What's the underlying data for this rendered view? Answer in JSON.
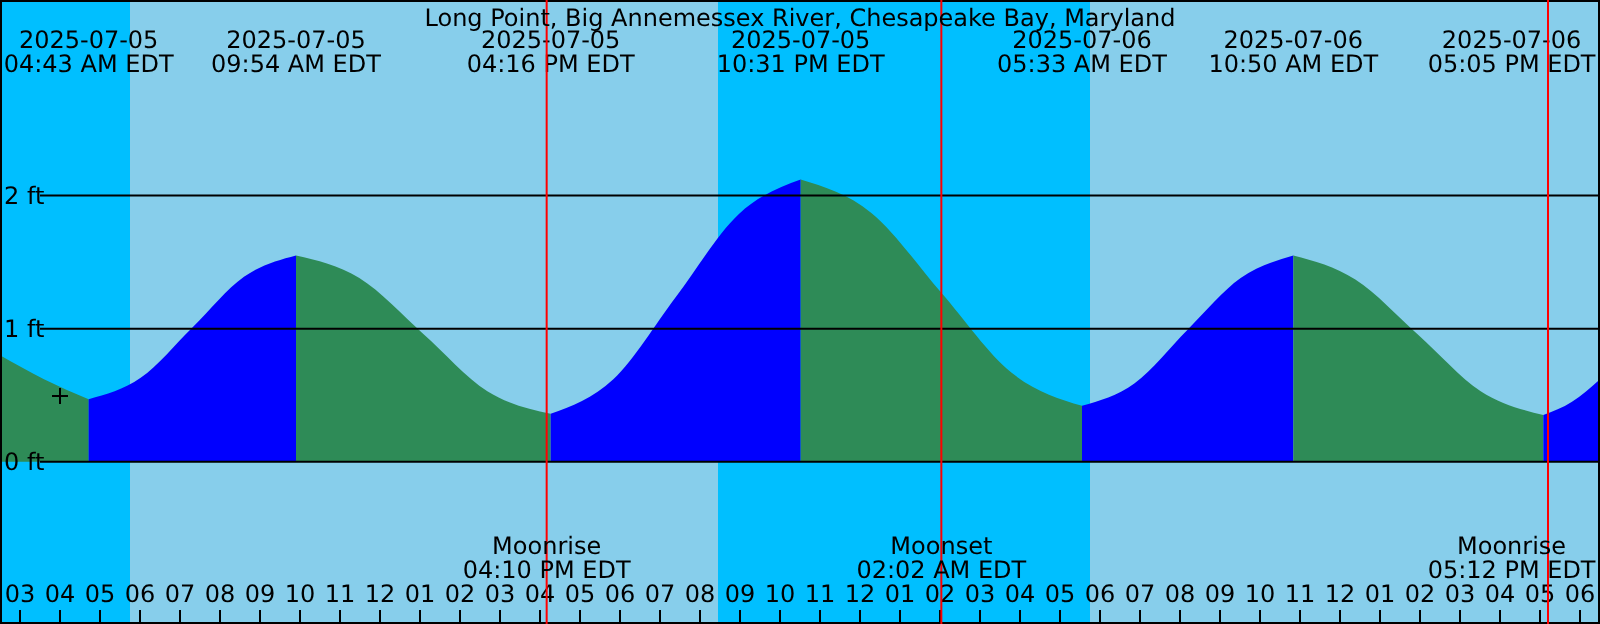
{
  "chart_data": {
    "type": "area",
    "title": "Long Point, Big Annemessex River, Chesapeake Bay, Maryland",
    "xlim": [
      "2025-07-05T02:30",
      "2025-07-06T18:30"
    ],
    "ylim": [
      -1.22,
      3.47
    ],
    "xticks": [
      {
        "value": "2025-07-05T03:00",
        "label": "03"
      },
      {
        "value": "2025-07-05T04:00",
        "label": "04"
      },
      {
        "value": "2025-07-05T05:00",
        "label": "05"
      },
      {
        "value": "2025-07-05T06:00",
        "label": "06"
      },
      {
        "value": "2025-07-05T07:00",
        "label": "07"
      },
      {
        "value": "2025-07-05T08:00",
        "label": "08"
      },
      {
        "value": "2025-07-05T09:00",
        "label": "09"
      },
      {
        "value": "2025-07-05T10:00",
        "label": "10"
      },
      {
        "value": "2025-07-05T11:00",
        "label": "11"
      },
      {
        "value": "2025-07-05T12:00",
        "label": "12"
      },
      {
        "value": "2025-07-05T13:00",
        "label": "01"
      },
      {
        "value": "2025-07-05T14:00",
        "label": "02"
      },
      {
        "value": "2025-07-05T15:00",
        "label": "03"
      },
      {
        "value": "2025-07-05T16:00",
        "label": "04"
      },
      {
        "value": "2025-07-05T17:00",
        "label": "05"
      },
      {
        "value": "2025-07-05T18:00",
        "label": "06"
      },
      {
        "value": "2025-07-05T19:00",
        "label": "07"
      },
      {
        "value": "2025-07-05T20:00",
        "label": "08"
      },
      {
        "value": "2025-07-05T21:00",
        "label": "09"
      },
      {
        "value": "2025-07-05T22:00",
        "label": "10"
      },
      {
        "value": "2025-07-05T23:00",
        "label": "11"
      },
      {
        "value": "2025-07-06T00:00",
        "label": "12"
      },
      {
        "value": "2025-07-06T01:00",
        "label": "01"
      },
      {
        "value": "2025-07-06T02:00",
        "label": "02"
      },
      {
        "value": "2025-07-06T03:00",
        "label": "03"
      },
      {
        "value": "2025-07-06T04:00",
        "label": "04"
      },
      {
        "value": "2025-07-06T05:00",
        "label": "05"
      },
      {
        "value": "2025-07-06T06:00",
        "label": "06"
      },
      {
        "value": "2025-07-06T07:00",
        "label": "07"
      },
      {
        "value": "2025-07-06T08:00",
        "label": "08"
      },
      {
        "value": "2025-07-06T09:00",
        "label": "09"
      },
      {
        "value": "2025-07-06T10:00",
        "label": "10"
      },
      {
        "value": "2025-07-06T11:00",
        "label": "11"
      },
      {
        "value": "2025-07-06T12:00",
        "label": "12"
      },
      {
        "value": "2025-07-06T13:00",
        "label": "01"
      },
      {
        "value": "2025-07-06T14:00",
        "label": "02"
      },
      {
        "value": "2025-07-06T15:00",
        "label": "03"
      },
      {
        "value": "2025-07-06T16:00",
        "label": "04"
      },
      {
        "value": "2025-07-06T17:00",
        "label": "05"
      },
      {
        "value": "2025-07-06T18:00",
        "label": "06"
      }
    ],
    "yticks": [
      {
        "value": 0,
        "label": "0 ft"
      },
      {
        "value": 1,
        "label": "1 ft"
      },
      {
        "value": 2,
        "label": "2 ft"
      }
    ],
    "grid": "y",
    "bands": [
      {
        "axis": "x",
        "from": "2025-07-05T02:30",
        "to": "2025-07-05T05:45",
        "color": "#00bfff"
      },
      {
        "axis": "x",
        "from": "2025-07-05T05:45",
        "to": "2025-07-05T20:27",
        "color": "#87ceeb"
      },
      {
        "axis": "x",
        "from": "2025-07-05T20:27",
        "to": "2025-07-06T05:45",
        "color": "#00bfff"
      },
      {
        "axis": "x",
        "from": "2025-07-06T05:45",
        "to": "2025-07-06T18:30",
        "color": "#87ceeb"
      }
    ],
    "series": [
      {
        "color": "#2e8b57",
        "x": [
          "2025-07-05T02:30",
          "2025-07-05T03:36",
          "2025-07-05T04:43"
        ],
        "values": [
          0.8,
          0.62,
          0.47
        ]
      },
      {
        "color": "#0000ff",
        "x": [
          "2025-07-05T04:43",
          "2025-07-05T06:01",
          "2025-07-05T07:19",
          "2025-07-05T08:36",
          "2025-07-05T09:54"
        ],
        "values": [
          0.47,
          0.63,
          1.01,
          1.39,
          1.55
        ]
      },
      {
        "color": "#2e8b57",
        "x": [
          "2025-07-05T09:54",
          "2025-07-05T11:29",
          "2025-07-05T13:05",
          "2025-07-05T14:41",
          "2025-07-05T16:16"
        ],
        "values": [
          1.55,
          1.38,
          0.96,
          0.53,
          0.36
        ]
      },
      {
        "color": "#0000ff",
        "x": [
          "2025-07-05T16:16",
          "2025-07-05T17:50",
          "2025-07-05T19:24",
          "2025-07-05T20:58",
          "2025-07-05T22:31"
        ],
        "values": [
          0.36,
          0.62,
          1.24,
          1.86,
          2.12
        ]
      },
      {
        "color": "#2e8b57",
        "x": [
          "2025-07-05T22:31",
          "2025-07-06T00:17",
          "2025-07-06T02:02",
          "2025-07-06T03:47",
          "2025-07-06T05:33"
        ],
        "values": [
          2.12,
          1.87,
          1.27,
          0.67,
          0.42
        ]
      },
      {
        "color": "#0000ff",
        "x": [
          "2025-07-06T05:33",
          "2025-07-06T06:52",
          "2025-07-06T08:11",
          "2025-07-06T09:31",
          "2025-07-06T10:50"
        ],
        "values": [
          0.42,
          0.59,
          0.99,
          1.38,
          1.55
        ]
      },
      {
        "color": "#2e8b57",
        "x": [
          "2025-07-06T10:50",
          "2025-07-06T12:23",
          "2025-07-06T13:58",
          "2025-07-06T15:31",
          "2025-07-06T17:05"
        ],
        "values": [
          1.55,
          1.37,
          0.95,
          0.53,
          0.35
        ]
      },
      {
        "color": "#0000ff",
        "x": [
          "2025-07-06T17:05",
          "2025-07-06T17:48",
          "2025-07-06T18:30"
        ],
        "values": [
          0.35,
          0.45,
          0.62
        ]
      }
    ],
    "ref_lines": [
      {
        "axis": "x",
        "value": "2025-07-05T16:10",
        "label": "Moonrise\n04:10 PM EDT",
        "color": "#ff0000"
      },
      {
        "axis": "x",
        "value": "2025-07-06T02:02",
        "label": "Moonset\n02:02 AM EDT",
        "color": "#ff0000"
      },
      {
        "axis": "x",
        "value": "2025-07-06T17:12",
        "label": "Moonrise\n05:12 PM EDT",
        "color": "#ff0000"
      }
    ],
    "annotations": [
      "2025-07-05\n04:43 AM EDT",
      "2025-07-05\n09:54 AM EDT",
      "2025-07-05\n04:16 PM EDT",
      "2025-07-05\n10:31 PM EDT",
      "2025-07-06\n05:33 AM EDT",
      "2025-07-06\n10:50 AM EDT",
      "2025-07-06\n05:05 PM EDT"
    ]
  }
}
